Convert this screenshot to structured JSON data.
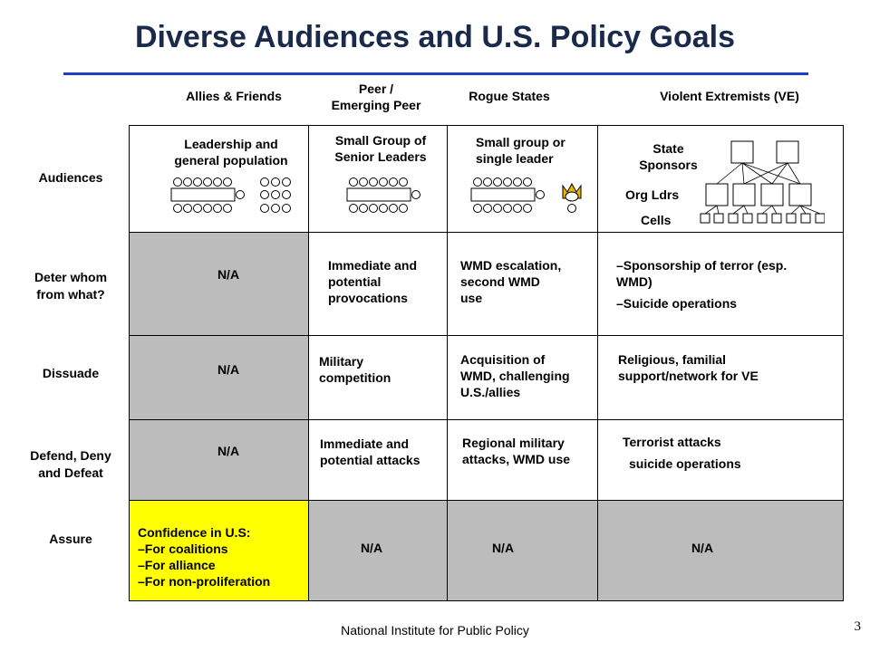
{
  "title": "Diverse Audiences and U.S. Policy Goals",
  "columns": [
    {
      "label": "Allies & Friends"
    },
    {
      "label": "Peer /\nEmerging Peer"
    },
    {
      "label": "Rogue States"
    },
    {
      "label": "Violent Extremists (VE)"
    }
  ],
  "rows": [
    {
      "label": "Audiences"
    },
    {
      "label": "Deter whom\nfrom what?"
    },
    {
      "label": "Dissuade"
    },
    {
      "label": "Defend, Deny\nand Defeat"
    },
    {
      "label": "Assure"
    }
  ],
  "audiences": {
    "allies": "Leadership and\ngeneral population",
    "peer": "Small Group of\nSenior Leaders",
    "rogue": "Small group or\nsingle leader",
    "ve_state_sponsors": "State\nSponsors",
    "ve_org_ldrs": "Org Ldrs",
    "ve_cells": "Cells"
  },
  "deter": {
    "allies": "N/A",
    "peer": "Immediate and\npotential\nprovocations",
    "rogue": "WMD escalation,\nsecond WMD\nuse",
    "ve": [
      "–Sponsorship of terror (esp.\nWMD)",
      "–Suicide operations"
    ]
  },
  "dissuade": {
    "allies": "N/A",
    "peer": "Military\ncompetition",
    "rogue": "Acquisition of\nWMD, challenging\nU.S./allies",
    "ve": "Religious, familial\nsupport/network for VE"
  },
  "defend": {
    "allies": "N/A",
    "peer": "Immediate and\npotential attacks",
    "rogue": "Regional military\nattacks, WMD use",
    "ve": [
      "Terrorist attacks",
      "suicide operations"
    ]
  },
  "assure": {
    "allies": "Confidence in U.S:\n–For coalitions\n–For alliance\n–For non-proliferation",
    "peer": "N/A",
    "rogue": "N/A",
    "ve": "N/A"
  },
  "footer": "National Institute for Public Policy",
  "page_number": "3",
  "colors": {
    "title": "#1a2a4a",
    "title_rule": "#1e3fbf",
    "shaded_cell": "#bcbcbc",
    "highlight_cell": "#ffff00"
  }
}
